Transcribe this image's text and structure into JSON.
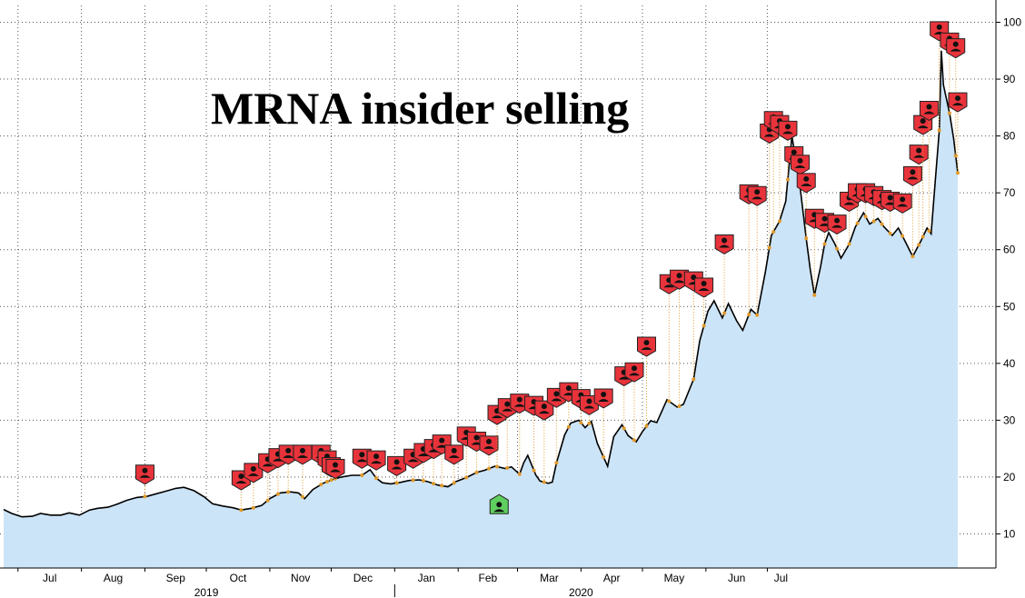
{
  "chart_data": {
    "type": "area",
    "title": "MRNA insider selling",
    "ylim": [
      4,
      102
    ],
    "yticks": [
      10,
      20,
      30,
      40,
      50,
      60,
      70,
      80,
      90,
      100
    ],
    "grid": true,
    "y_axis_side": "right",
    "months": [
      {
        "label": "Jul",
        "date": "2019-07-01"
      },
      {
        "label": "Aug",
        "date": "2019-08-01"
      },
      {
        "label": "Sep",
        "date": "2019-09-01"
      },
      {
        "label": "Oct",
        "date": "2019-10-01"
      },
      {
        "label": "Nov",
        "date": "2019-11-01"
      },
      {
        "label": "Dec",
        "date": "2019-12-01"
      },
      {
        "label": "Jan",
        "date": "2020-01-01"
      },
      {
        "label": "Feb",
        "date": "2020-02-01"
      },
      {
        "label": "Mar",
        "date": "2020-03-01"
      },
      {
        "label": "Apr",
        "date": "2020-04-01"
      },
      {
        "label": "May",
        "date": "2020-05-01"
      },
      {
        "label": "Jun",
        "date": "2020-06-01"
      },
      {
        "label": "Jul",
        "date": "2020-07-01"
      }
    ],
    "years": [
      {
        "label": "2019",
        "date": "2019-10-01"
      },
      {
        "label": "2020",
        "date": "2020-04-01"
      }
    ],
    "series": [
      {
        "points": [
          [
            "2019-06-24",
            14.3
          ],
          [
            "2019-06-28",
            13.6
          ],
          [
            "2019-07-03",
            13.0
          ],
          [
            "2019-07-08",
            13.1
          ],
          [
            "2019-07-12",
            13.6
          ],
          [
            "2019-07-17",
            13.3
          ],
          [
            "2019-07-22",
            13.3
          ],
          [
            "2019-07-26",
            13.7
          ],
          [
            "2019-07-31",
            13.3
          ],
          [
            "2019-08-05",
            14.2
          ],
          [
            "2019-08-09",
            14.5
          ],
          [
            "2019-08-14",
            14.7
          ],
          [
            "2019-08-19",
            15.3
          ],
          [
            "2019-08-23",
            15.9
          ],
          [
            "2019-08-28",
            16.4
          ],
          [
            "2019-09-02",
            16.6
          ],
          [
            "2019-09-06",
            17.0
          ],
          [
            "2019-09-11",
            17.5
          ],
          [
            "2019-09-16",
            18.0
          ],
          [
            "2019-09-20",
            18.2
          ],
          [
            "2019-09-25",
            17.6
          ],
          [
            "2019-09-30",
            16.5
          ],
          [
            "2019-10-04",
            15.3
          ],
          [
            "2019-10-09",
            14.9
          ],
          [
            "2019-10-14",
            14.6
          ],
          [
            "2019-10-18",
            14.2
          ],
          [
            "2019-10-23",
            14.5
          ],
          [
            "2019-10-28",
            15.0
          ],
          [
            "2019-11-01",
            16.2
          ],
          [
            "2019-11-06",
            17.2
          ],
          [
            "2019-11-11",
            17.4
          ],
          [
            "2019-11-15",
            17.2
          ],
          [
            "2019-11-18",
            16.2
          ],
          [
            "2019-11-22",
            17.8
          ],
          [
            "2019-11-27",
            18.9
          ],
          [
            "2019-12-02",
            19.6
          ],
          [
            "2019-12-06",
            20.0
          ],
          [
            "2019-12-11",
            20.3
          ],
          [
            "2019-12-16",
            20.3
          ],
          [
            "2019-12-20",
            21.3
          ],
          [
            "2019-12-23",
            19.8
          ],
          [
            "2019-12-26",
            19.0
          ],
          [
            "2019-12-30",
            18.8
          ],
          [
            "2020-01-03",
            19.0
          ],
          [
            "2020-01-08",
            19.4
          ],
          [
            "2020-01-13",
            19.5
          ],
          [
            "2020-01-17",
            19.2
          ],
          [
            "2020-01-22",
            18.6
          ],
          [
            "2020-01-27",
            18.3
          ],
          [
            "2020-01-31",
            19.2
          ],
          [
            "2020-02-05",
            19.9
          ],
          [
            "2020-02-10",
            20.8
          ],
          [
            "2020-02-14",
            21.2
          ],
          [
            "2020-02-19",
            21.9
          ],
          [
            "2020-02-24",
            21.5
          ],
          [
            "2020-02-27",
            21.8
          ],
          [
            "2020-03-02",
            20.5
          ],
          [
            "2020-03-04",
            22.5
          ],
          [
            "2020-03-06",
            23.8
          ],
          [
            "2020-03-10",
            20.3
          ],
          [
            "2020-03-12",
            19.3
          ],
          [
            "2020-03-16",
            18.9
          ],
          [
            "2020-03-18",
            19.1
          ],
          [
            "2020-03-20",
            22.5
          ],
          [
            "2020-03-24",
            27.4
          ],
          [
            "2020-03-27",
            29.5
          ],
          [
            "2020-03-31",
            30.0
          ],
          [
            "2020-04-03",
            28.7
          ],
          [
            "2020-04-06",
            29.8
          ],
          [
            "2020-04-09",
            25.9
          ],
          [
            "2020-04-14",
            21.9
          ],
          [
            "2020-04-17",
            27.1
          ],
          [
            "2020-04-21",
            29.2
          ],
          [
            "2020-04-24",
            27.3
          ],
          [
            "2020-04-28",
            26.2
          ],
          [
            "2020-05-01",
            28.0
          ],
          [
            "2020-05-05",
            29.9
          ],
          [
            "2020-05-08",
            29.6
          ],
          [
            "2020-05-13",
            33.6
          ],
          [
            "2020-05-18",
            32.3
          ],
          [
            "2020-05-21",
            32.8
          ],
          [
            "2020-05-26",
            37.2
          ],
          [
            "2020-05-29",
            44.0
          ],
          [
            "2020-06-02",
            49.2
          ],
          [
            "2020-06-05",
            51.0
          ],
          [
            "2020-06-09",
            48.0
          ],
          [
            "2020-06-12",
            50.5
          ],
          [
            "2020-06-16",
            47.5
          ],
          [
            "2020-06-19",
            45.8
          ],
          [
            "2020-06-23",
            49.5
          ],
          [
            "2020-06-26",
            48.5
          ],
          [
            "2020-06-30",
            56.0
          ],
          [
            "2020-07-03",
            62.5
          ],
          [
            "2020-07-07",
            65.0
          ],
          [
            "2020-07-10",
            68.5
          ],
          [
            "2020-07-13",
            80.0
          ],
          [
            "2020-07-15",
            75.5
          ],
          [
            "2020-07-17",
            71.0
          ],
          [
            "2020-07-20",
            62.0
          ],
          [
            "2020-07-22",
            56.5
          ],
          [
            "2020-07-24",
            52.0
          ],
          [
            "2020-07-27",
            57.0
          ],
          [
            "2020-07-29",
            61.0
          ],
          [
            "2020-07-31",
            63.0
          ],
          [
            "2020-08-03",
            61.0
          ],
          [
            "2020-08-06",
            58.5
          ],
          [
            "2020-08-10",
            61.0
          ],
          [
            "2020-08-13",
            64.0
          ],
          [
            "2020-08-17",
            66.5
          ],
          [
            "2020-08-20",
            64.5
          ],
          [
            "2020-08-24",
            65.5
          ],
          [
            "2020-08-27",
            64.0
          ],
          [
            "2020-08-31",
            62.5
          ],
          [
            "2020-09-03",
            63.8
          ],
          [
            "2020-09-07",
            61.0
          ],
          [
            "2020-09-10",
            58.8
          ],
          [
            "2020-09-14",
            61.5
          ],
          [
            "2020-09-17",
            63.8
          ],
          [
            "2020-09-19",
            62.8
          ],
          [
            "2020-09-21",
            72.0
          ],
          [
            "2020-09-23",
            81.0
          ],
          [
            "2020-09-24",
            95.0
          ],
          [
            "2020-09-25",
            89.0
          ],
          [
            "2020-09-28",
            84.0
          ],
          [
            "2020-09-30",
            79.5
          ],
          [
            "2020-10-02",
            73.5
          ]
        ]
      }
    ],
    "sell_markers": [
      [
        "2019-09-01",
        20.5
      ],
      [
        "2019-10-18",
        19.5
      ],
      [
        "2019-10-24",
        20.8
      ],
      [
        "2019-10-31",
        22.5
      ],
      [
        "2019-11-05",
        23.4
      ],
      [
        "2019-11-10",
        24.0
      ],
      [
        "2019-11-17",
        24.0
      ],
      [
        "2019-11-26",
        24.0
      ],
      [
        "2019-11-29",
        23.0
      ],
      [
        "2019-12-01",
        21.8
      ],
      [
        "2019-12-03",
        21.5
      ],
      [
        "2019-12-16",
        23.3
      ],
      [
        "2019-12-23",
        23.0
      ],
      [
        "2020-01-02",
        22.0
      ],
      [
        "2020-01-10",
        23.3
      ],
      [
        "2020-01-15",
        24.3
      ],
      [
        "2020-01-20",
        25.0
      ],
      [
        "2020-01-24",
        25.8
      ],
      [
        "2020-01-30",
        24.0
      ],
      [
        "2020-02-05",
        27.2
      ],
      [
        "2020-02-10",
        26.3
      ],
      [
        "2020-02-16",
        25.6
      ],
      [
        "2020-02-20",
        31.0
      ],
      [
        "2020-02-25",
        32.2
      ],
      [
        "2020-03-02",
        33.0
      ],
      [
        "2020-03-09",
        32.6
      ],
      [
        "2020-03-14",
        31.8
      ],
      [
        "2020-03-20",
        34.0
      ],
      [
        "2020-03-26",
        35.0
      ],
      [
        "2020-04-01",
        33.8
      ],
      [
        "2020-04-05",
        32.7
      ],
      [
        "2020-04-12",
        33.9
      ],
      [
        "2020-04-22",
        37.8
      ],
      [
        "2020-04-27",
        38.5
      ],
      [
        "2020-05-03",
        43.0
      ],
      [
        "2020-05-14",
        54.0
      ],
      [
        "2020-05-19",
        54.8
      ],
      [
        "2020-05-26",
        54.5
      ],
      [
        "2020-05-31",
        53.4
      ],
      [
        "2020-06-10",
        61.0
      ],
      [
        "2020-06-22",
        69.8
      ],
      [
        "2020-06-26",
        69.5
      ],
      [
        "2020-07-02",
        80.5
      ],
      [
        "2020-07-04",
        82.7
      ],
      [
        "2020-07-07",
        82.0
      ],
      [
        "2020-07-11",
        81.0
      ],
      [
        "2020-07-14",
        76.5
      ],
      [
        "2020-07-17",
        75.0
      ],
      [
        "2020-07-20",
        71.8
      ],
      [
        "2020-07-24",
        65.5
      ],
      [
        "2020-07-29",
        64.8
      ],
      [
        "2020-08-04",
        64.5
      ],
      [
        "2020-08-10",
        68.5
      ],
      [
        "2020-08-14",
        70.0
      ],
      [
        "2020-08-18",
        70.0
      ],
      [
        "2020-08-22",
        69.5
      ],
      [
        "2020-08-26",
        68.8
      ],
      [
        "2020-08-30",
        68.5
      ],
      [
        "2020-09-05",
        68.2
      ],
      [
        "2020-09-10",
        73.0
      ],
      [
        "2020-09-13",
        76.8
      ],
      [
        "2020-09-15",
        82.0
      ],
      [
        "2020-09-18",
        84.5
      ],
      [
        "2020-09-23",
        98.5
      ],
      [
        "2020-09-28",
        96.5
      ],
      [
        "2020-10-01",
        95.5
      ],
      [
        "2020-10-02",
        86.0
      ]
    ],
    "buy_markers": [
      [
        "2020-02-21",
        15.0
      ]
    ],
    "colors": {
      "line": "#000000",
      "area": "#cce4f7",
      "sell_marker": "#e8333b",
      "buy_marker": "#5fcf5f",
      "dots": "#e09a2c",
      "grid": "#555555"
    }
  }
}
